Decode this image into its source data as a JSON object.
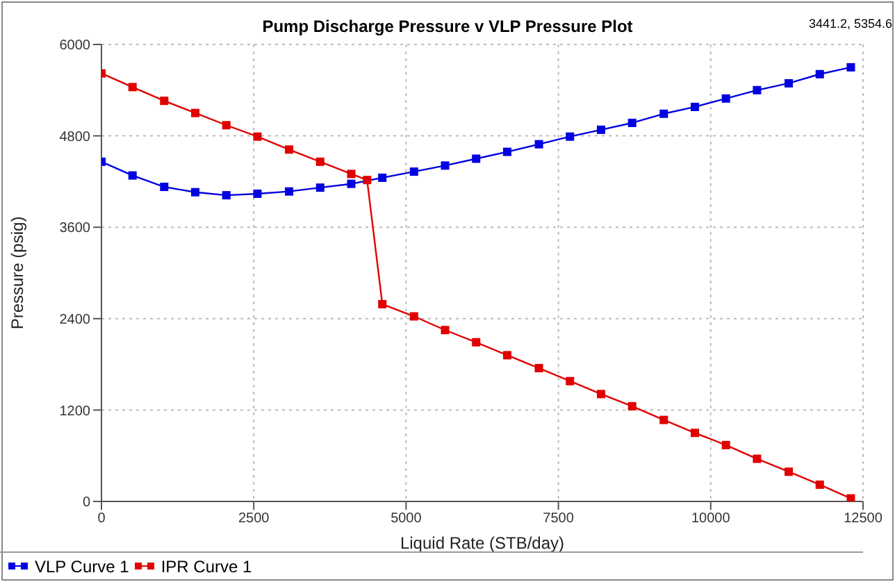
{
  "chart_data": {
    "type": "line",
    "title": "Pump Discharge Pressure v VLP Pressure Plot",
    "xlabel": "Liquid Rate  (STB/day)",
    "ylabel": "Pressure  (psig)",
    "annotations": [
      "3441.2, 5354.6"
    ],
    "xlim": [
      0,
      12500
    ],
    "xticks": [
      0,
      2500,
      5000,
      7500,
      10000,
      12500
    ],
    "ylim": [
      0,
      6000
    ],
    "yticks": [
      0,
      1200,
      2400,
      3600,
      4800,
      6000
    ],
    "grid": true,
    "legend": "bottom left",
    "marker": "square",
    "line_style": "solid",
    "series": [
      {
        "name": "VLP Curve 1",
        "color": "#0000e0",
        "x": [
          0,
          510,
          1030,
          1540,
          2050,
          2560,
          3080,
          3590,
          4100,
          4610,
          5130,
          5640,
          6150,
          6660,
          7180,
          7690,
          8200,
          8710,
          9230,
          9740,
          10250,
          10760,
          11280,
          11790,
          12300
        ],
        "values": [
          4460,
          4280,
          4130,
          4060,
          4020,
          4040,
          4070,
          4120,
          4170,
          4250,
          4330,
          4410,
          4500,
          4590,
          4690,
          4790,
          4880,
          4970,
          5090,
          5180,
          5290,
          5400,
          5490,
          5610,
          5700
        ]
      },
      {
        "name": "IPR Curve 1",
        "color": "#e00000",
        "x": [
          0,
          510,
          1030,
          1540,
          2050,
          2560,
          3080,
          3590,
          4100,
          4360,
          4610,
          5130,
          5640,
          6150,
          6660,
          7180,
          7690,
          8200,
          8710,
          9230,
          9740,
          10250,
          10760,
          11280,
          11790,
          12300
        ],
        "values": [
          5620,
          5440,
          5260,
          5100,
          4940,
          4790,
          4620,
          4460,
          4300,
          4220,
          2590,
          2430,
          2250,
          2090,
          1920,
          1750,
          1580,
          1410,
          1250,
          1070,
          900,
          740,
          560,
          390,
          220,
          40
        ]
      }
    ]
  }
}
